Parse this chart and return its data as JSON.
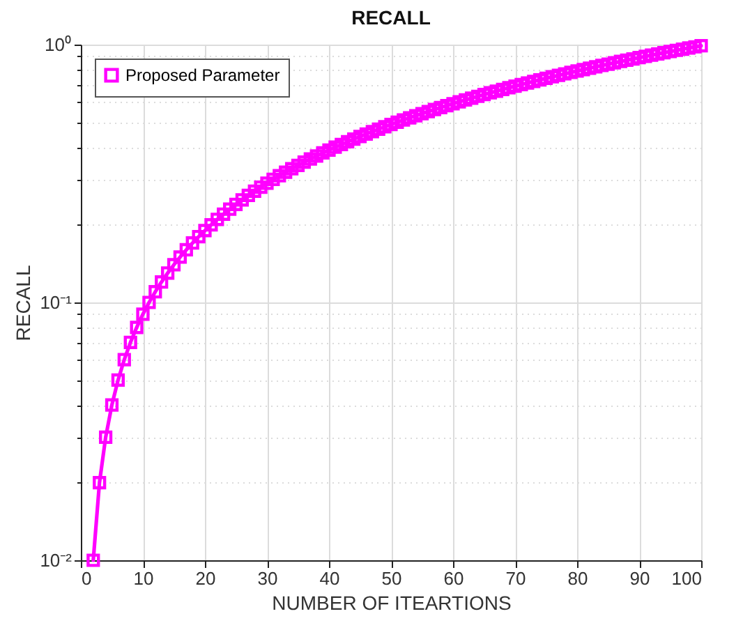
{
  "chart_data": {
    "type": "line",
    "title": "RECALL",
    "xlabel": "NUMBER OF ITEARTIONS",
    "ylabel": "RECALL",
    "x": [
      2,
      3,
      4,
      5,
      6,
      7,
      8,
      9,
      10,
      11,
      12,
      13,
      14,
      15,
      16,
      17,
      18,
      19,
      20,
      21,
      22,
      23,
      24,
      25,
      26,
      27,
      28,
      29,
      30,
      31,
      32,
      33,
      34,
      35,
      36,
      37,
      38,
      39,
      40,
      41,
      42,
      43,
      44,
      45,
      46,
      47,
      48,
      49,
      50,
      51,
      52,
      53,
      54,
      55,
      56,
      57,
      58,
      59,
      60,
      61,
      62,
      63,
      64,
      65,
      66,
      67,
      68,
      69,
      70,
      71,
      72,
      73,
      74,
      75,
      76,
      77,
      78,
      79,
      80,
      81,
      82,
      83,
      84,
      85,
      86,
      87,
      88,
      89,
      90,
      91,
      92,
      93,
      94,
      95,
      96,
      97,
      98,
      99,
      100
    ],
    "series": [
      {
        "name": "Proposed Parameter",
        "color": "#ff00ff",
        "values": [
          0.01,
          0.02,
          0.03,
          0.04,
          0.05,
          0.06,
          0.07,
          0.08,
          0.09,
          0.1,
          0.11,
          0.12,
          0.13,
          0.14,
          0.15,
          0.16,
          0.17,
          0.18,
          0.19,
          0.2,
          0.21,
          0.22,
          0.23,
          0.24,
          0.25,
          0.26,
          0.27,
          0.28,
          0.29,
          0.3,
          0.31,
          0.32,
          0.33,
          0.34,
          0.35,
          0.36,
          0.37,
          0.38,
          0.39,
          0.4,
          0.41,
          0.42,
          0.43,
          0.44,
          0.45,
          0.46,
          0.47,
          0.48,
          0.49,
          0.5,
          0.51,
          0.52,
          0.53,
          0.54,
          0.55,
          0.56,
          0.57,
          0.58,
          0.59,
          0.6,
          0.61,
          0.62,
          0.63,
          0.64,
          0.65,
          0.66,
          0.67,
          0.68,
          0.69,
          0.7,
          0.71,
          0.72,
          0.73,
          0.74,
          0.75,
          0.76,
          0.77,
          0.78,
          0.79,
          0.8,
          0.81,
          0.82,
          0.83,
          0.84,
          0.85,
          0.86,
          0.87,
          0.88,
          0.89,
          0.9,
          0.91,
          0.92,
          0.93,
          0.94,
          0.95,
          0.96,
          0.97,
          0.98,
          0.99
        ]
      }
    ],
    "xlim": [
      0,
      100
    ],
    "xticks": [
      0,
      10,
      20,
      30,
      40,
      50,
      60,
      70,
      80,
      90,
      100
    ],
    "ylim": [
      0.01,
      1
    ],
    "log": true,
    "yticks": [
      {
        "value": 0.01,
        "label": "10⁻²"
      },
      {
        "value": 0.02,
        "label": null
      },
      {
        "value": 0.03,
        "label": null
      },
      {
        "value": 0.04,
        "label": null
      },
      {
        "value": 0.05,
        "label": null
      },
      {
        "value": 0.06,
        "label": null
      },
      {
        "value": 0.07,
        "label": null
      },
      {
        "value": 0.08,
        "label": null
      },
      {
        "value": 0.09,
        "label": null
      },
      {
        "value": 0.1,
        "label": "10⁻¹"
      },
      {
        "value": 0.2,
        "label": null
      },
      {
        "value": 0.3,
        "label": null
      },
      {
        "value": 0.4,
        "label": null
      },
      {
        "value": 0.5,
        "label": null
      },
      {
        "value": 0.6,
        "label": null
      },
      {
        "value": 0.7,
        "label": null
      },
      {
        "value": 0.8,
        "label": null
      },
      {
        "value": 0.9,
        "label": null
      },
      {
        "value": 1,
        "label": "10⁰"
      }
    ],
    "grid": true,
    "legend": "top left",
    "marker": "square",
    "line_style": "solid"
  }
}
